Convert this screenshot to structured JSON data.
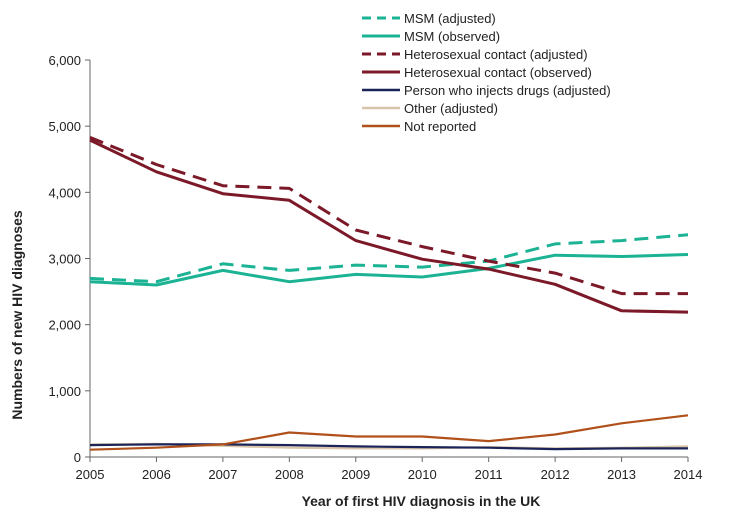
{
  "chart_data": {
    "type": "line",
    "xlabel": "Year of first HIV diagnosis in the UK",
    "ylabel": "Numbers of new HIV diagnoses",
    "categories": [
      "2005",
      "2006",
      "2007",
      "2008",
      "2009",
      "2010",
      "2011",
      "2012",
      "2013",
      "2014"
    ],
    "ylim": [
      0,
      6000
    ],
    "yticks": [
      0,
      1000,
      2000,
      3000,
      4000,
      5000,
      6000
    ],
    "ytick_labels": [
      "0",
      "1,000",
      "2,000",
      "3,000",
      "4,000",
      "5,000",
      "6,000"
    ],
    "grid": false,
    "legend_position": "top-right",
    "series": [
      {
        "name": "MSM (adjusted)",
        "color": "#1bb394",
        "dash": "dashed",
        "values": [
          2700,
          2650,
          2920,
          2820,
          2900,
          2870,
          2960,
          3220,
          3270,
          3360
        ]
      },
      {
        "name": "MSM (observed)",
        "color": "#1bb394",
        "dash": "solid",
        "values": [
          2650,
          2600,
          2820,
          2650,
          2760,
          2720,
          2850,
          3050,
          3030,
          3060
        ]
      },
      {
        "name": "Heterosexual contact (adjusted)",
        "color": "#7b1928",
        "dash": "dashed",
        "values": [
          4830,
          4420,
          4100,
          4060,
          3430,
          3180,
          2960,
          2780,
          2470,
          2470
        ]
      },
      {
        "name": "Heterosexual contact (observed)",
        "color": "#7b1928",
        "dash": "solid",
        "values": [
          4790,
          4310,
          3980,
          3880,
          3270,
          2990,
          2840,
          2610,
          2210,
          2190
        ]
      },
      {
        "name": "Person who injects drugs  (adjusted)",
        "color": "#1b2459",
        "dash": "solid",
        "values": [
          180,
          190,
          190,
          180,
          160,
          150,
          140,
          120,
          130,
          130
        ]
      },
      {
        "name": "Other (adjusted)",
        "color": "#d8c4a8",
        "dash": "solid",
        "values": [
          190,
          200,
          170,
          140,
          130,
          130,
          150,
          130,
          140,
          160
        ]
      },
      {
        "name": "Not reported",
        "color": "#b0501a",
        "dash": "solid",
        "values": [
          110,
          140,
          190,
          370,
          310,
          310,
          240,
          340,
          510,
          630
        ]
      }
    ]
  }
}
